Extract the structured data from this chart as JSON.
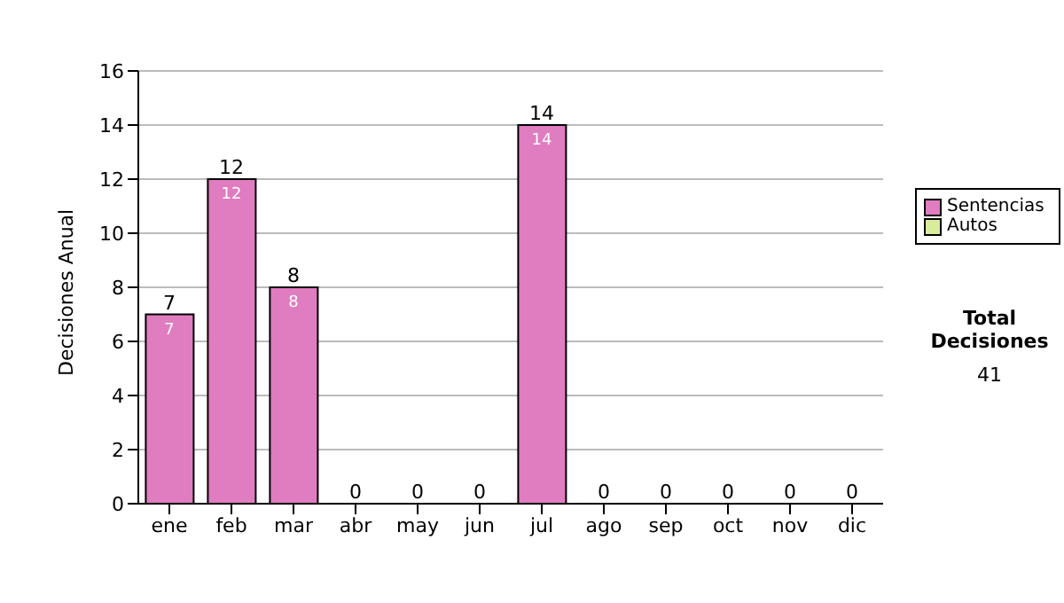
{
  "chart_data": {
    "type": "bar",
    "stacked": true,
    "ylabel": "Decisiones Anual",
    "categories": [
      "ene",
      "feb",
      "mar",
      "abr",
      "may",
      "jun",
      "jul",
      "ago",
      "sep",
      "oct",
      "nov",
      "dic"
    ],
    "series": [
      {
        "name": "Sentencias",
        "color": "#e07cc0",
        "values": [
          7,
          12,
          8,
          0,
          0,
          0,
          14,
          0,
          0,
          0,
          0,
          0
        ],
        "value_labels": [
          "7",
          "12",
          "8",
          null,
          null,
          null,
          "14",
          null,
          null,
          null,
          null,
          null
        ]
      },
      {
        "name": "Autos",
        "color": "#d8ec9c",
        "values": [
          0,
          0,
          0,
          0,
          0,
          0,
          0,
          0,
          0,
          0,
          0,
          0
        ]
      }
    ],
    "totals": [
      "7",
      "12",
      "8",
      "0",
      "0",
      "0",
      "14",
      "0",
      "0",
      "0",
      "0",
      "0"
    ],
    "ylim": [
      0,
      16
    ],
    "yticks": [
      0,
      2,
      4,
      6,
      8,
      10,
      12,
      14,
      16
    ],
    "grid": "y",
    "legend": "right",
    "annotations": [
      "Total Decisiones",
      "41"
    ]
  }
}
